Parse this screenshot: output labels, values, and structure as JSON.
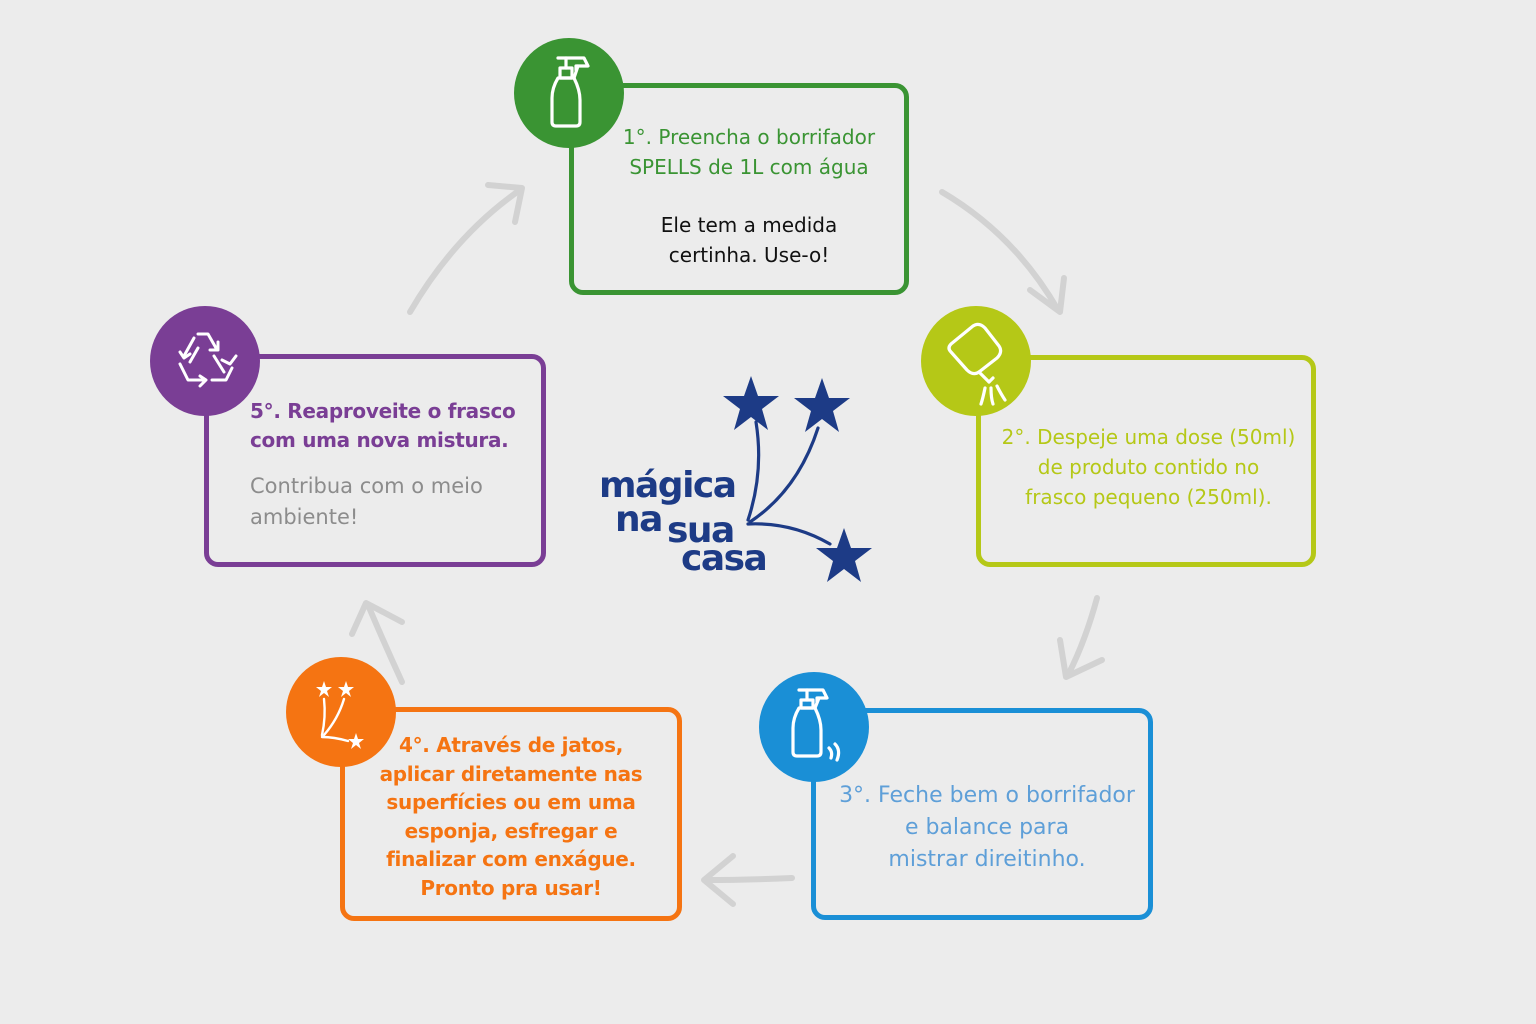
{
  "colors": {
    "background": "#ececec",
    "arrow": "#d2d2d2",
    "step1": "#3a9433",
    "step2": "#b5c817",
    "step3": "#1a8fd6",
    "step3_text": "#5e9fd8",
    "step4": "#f57412",
    "step5": "#7a3e95",
    "step5_secondary": "#8c8c8c",
    "dark_text": "#111111",
    "logo": "#1d3b86"
  },
  "steps": [
    {
      "id": "step1",
      "icon": "spray-bottle-icon",
      "lines": [
        "1°. Preencha o borrifador\nSPELLS de 1L com água"
      ],
      "secondary": "Ele tem a medida\n certinha. Use-o!"
    },
    {
      "id": "step2",
      "icon": "pouring-bottle-icon",
      "lines": [
        "2°. Despeje uma dose (50ml)\nde produto contido no\nfrasco pequeno (250ml)."
      ]
    },
    {
      "id": "step3",
      "icon": "shaking-spray-bottle-icon",
      "lines": [
        "3°. Feche bem o borrifador\ne balance para\n mistrar direitinho."
      ]
    },
    {
      "id": "step4",
      "icon": "sparkle-stars-icon",
      "lines": [
        "4°. Através de jatos,\naplicar diretamente nas\nsuperfícies ou em  uma\nesponja, esfregar e\nfinalizar com enxágue.\nPronto pra usar!"
      ]
    },
    {
      "id": "step5",
      "icon": "recycle-icon",
      "lines": [
        "5°. Reaproveite o frasco\ncom uma nova mistura."
      ],
      "secondary": "Contribua com o meio\nambiente!"
    }
  ],
  "logo": {
    "word1": "mágica",
    "word2": "na",
    "word3": "sua",
    "word4": "casa"
  }
}
